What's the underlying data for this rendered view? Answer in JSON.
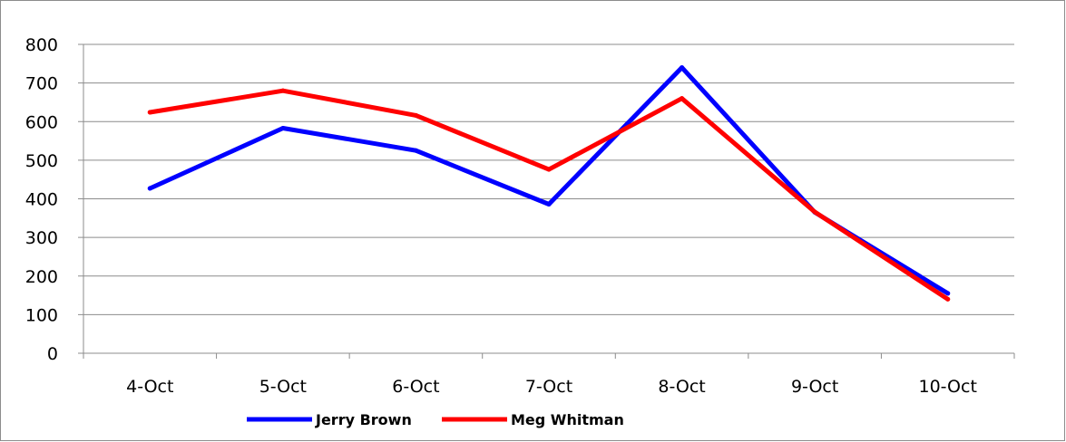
{
  "chart_data": {
    "type": "line",
    "title": "",
    "xlabel": "",
    "ylabel": "",
    "categories": [
      "4-Oct",
      "5-Oct",
      "6-Oct",
      "7-Oct",
      "8-Oct",
      "9-Oct",
      "10-Oct"
    ],
    "ylim": [
      0,
      800
    ],
    "yticks": [
      0,
      100,
      200,
      300,
      400,
      500,
      600,
      700,
      800
    ],
    "grid": true,
    "legend_position": "bottom",
    "series": [
      {
        "name": "Jerry Brown",
        "color": "#0000ff",
        "values": [
          427,
          583,
          525,
          386,
          740,
          365,
          155
        ]
      },
      {
        "name": "Meg Whitman",
        "color": "#ff0000",
        "values": [
          624,
          680,
          616,
          476,
          660,
          366,
          140
        ]
      }
    ]
  }
}
